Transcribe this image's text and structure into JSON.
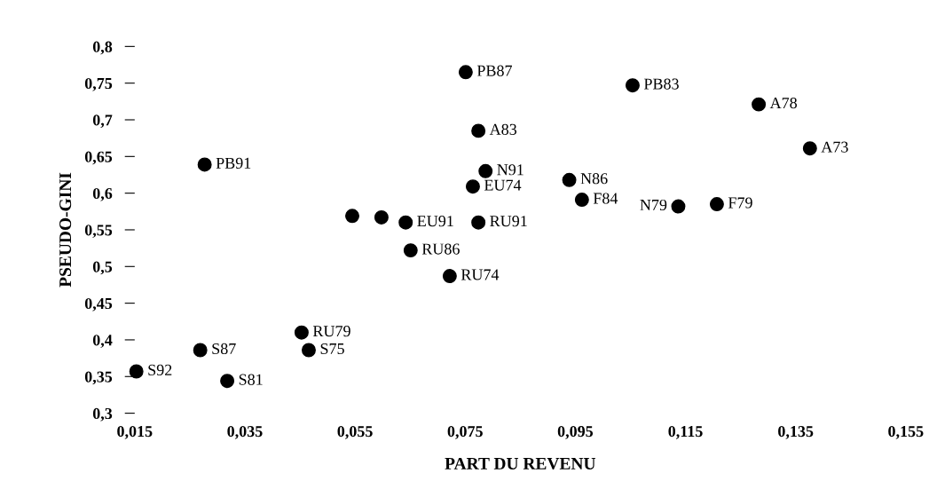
{
  "chart_data": {
    "type": "scatter",
    "xlabel": "PART DU REVENU",
    "ylabel": "PSEUDO-GINI",
    "x": [
      0.0751,
      0.1054,
      0.1283,
      0.1376,
      0.0774,
      0.0277,
      0.0787,
      0.0764,
      0.0939,
      0.0962,
      0.1137,
      0.1207,
      0.0545,
      0.0598,
      0.0642,
      0.0774,
      0.0651,
      0.0722,
      0.0453,
      0.0466,
      0.0269,
      0.0153,
      0.0318
    ],
    "series": [
      {
        "color": "#000000",
        "values": [
          0.765,
          0.747,
          0.721,
          0.661,
          0.685,
          0.639,
          0.63,
          0.609,
          0.618,
          0.591,
          0.582,
          0.585,
          0.569,
          0.567,
          0.56,
          0.56,
          0.522,
          0.487,
          0.41,
          0.386,
          0.386,
          0.357,
          0.344
        ]
      }
    ],
    "annotations": [
      {
        "text": "PB87",
        "x": 0.0751,
        "y": 0.765
      },
      {
        "text": "PB83",
        "x": 0.1054,
        "y": 0.747
      },
      {
        "text": "A78",
        "x": 0.1283,
        "y": 0.721
      },
      {
        "text": "A73",
        "x": 0.1376,
        "y": 0.661
      },
      {
        "text": "A83",
        "x": 0.0774,
        "y": 0.685
      },
      {
        "text": "PB91",
        "x": 0.0277,
        "y": 0.639
      },
      {
        "text": "N91",
        "x": 0.0787,
        "y": 0.63
      },
      {
        "text": "EU74",
        "x": 0.0764,
        "y": 0.609
      },
      {
        "text": "N86",
        "x": 0.0939,
        "y": 0.618
      },
      {
        "text": "F84",
        "x": 0.0962,
        "y": 0.591
      },
      {
        "text": "N79",
        "x": 0.1137,
        "y": 0.582
      },
      {
        "text": "F79",
        "x": 0.1207,
        "y": 0.585
      },
      {
        "text": "EU91",
        "x": 0.0642,
        "y": 0.56
      },
      {
        "text": "RU91",
        "x": 0.0774,
        "y": 0.56
      },
      {
        "text": "RU86",
        "x": 0.0651,
        "y": 0.522
      },
      {
        "text": "RU74",
        "x": 0.0722,
        "y": 0.487
      },
      {
        "text": "RU79",
        "x": 0.0453,
        "y": 0.41
      },
      {
        "text": "S75",
        "x": 0.0466,
        "y": 0.386
      },
      {
        "text": "S87",
        "x": 0.0269,
        "y": 0.386
      },
      {
        "text": "S92",
        "x": 0.0153,
        "y": 0.357
      },
      {
        "text": "S81",
        "x": 0.0318,
        "y": 0.344
      }
    ],
    "xlim": [
      0.015,
      0.155
    ],
    "ylim": [
      0.3,
      0.8
    ],
    "xticks": [
      {
        "value": 0.015,
        "label": "0,015"
      },
      {
        "value": 0.035,
        "label": "0,035"
      },
      {
        "value": 0.055,
        "label": "0,055"
      },
      {
        "value": 0.075,
        "label": "0,075"
      },
      {
        "value": 0.095,
        "label": "0,095"
      },
      {
        "value": 0.115,
        "label": "0,115"
      },
      {
        "value": 0.135,
        "label": "0,135"
      },
      {
        "value": 0.155,
        "label": "0,155"
      }
    ],
    "yticks": [
      {
        "value": 0.3,
        "label": "0,3"
      },
      {
        "value": 0.35,
        "label": "0,35"
      },
      {
        "value": 0.4,
        "label": "0,4"
      },
      {
        "value": 0.45,
        "label": "0,45"
      },
      {
        "value": 0.5,
        "label": "0,5"
      },
      {
        "value": 0.55,
        "label": "0,55"
      },
      {
        "value": 0.6,
        "label": "0,6"
      },
      {
        "value": 0.65,
        "label": "0,65"
      },
      {
        "value": 0.7,
        "label": "0,7"
      },
      {
        "value": 0.75,
        "label": "0,75"
      },
      {
        "value": 0.8,
        "label": "0,8"
      }
    ],
    "marker": "circle",
    "grid": false,
    "legend": false
  }
}
